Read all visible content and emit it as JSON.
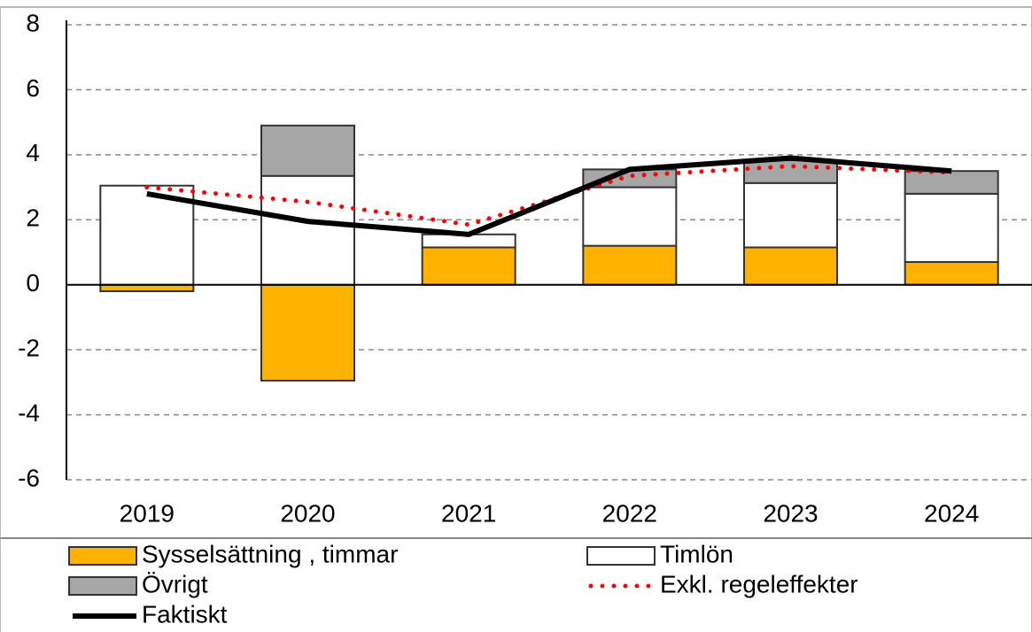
{
  "chart_data": {
    "type": "bar",
    "stacked": true,
    "categories": [
      "2019",
      "2020",
      "2021",
      "2022",
      "2023",
      "2024"
    ],
    "series": [
      {
        "name": "Sysselsättning , timmar",
        "type": "bar",
        "color": "#ffb300",
        "values": [
          -0.2,
          -2.95,
          1.15,
          1.2,
          1.15,
          0.7
        ]
      },
      {
        "name": "Timlön",
        "type": "bar",
        "color": "#ffffff",
        "values": [
          3.05,
          3.35,
          0.4,
          1.8,
          1.98,
          2.1
        ]
      },
      {
        "name": "Övrigt",
        "type": "bar",
        "color": "#a6a6a6",
        "values": [
          0,
          1.55,
          0,
          0.55,
          0.7,
          0.7
        ]
      },
      {
        "name": "Exkl. regeleffekter",
        "type": "line",
        "color": "#ff0000",
        "dash": "dotted",
        "values": [
          3.0,
          2.55,
          1.85,
          3.35,
          3.65,
          3.45
        ]
      },
      {
        "name": "Faktiskt",
        "type": "line",
        "color": "#000000",
        "dash": "solid",
        "values": [
          2.8,
          1.95,
          1.55,
          3.55,
          3.9,
          3.5
        ]
      }
    ],
    "ylim": [
      -6,
      8
    ],
    "yticks": [
      -6,
      -4,
      -2,
      0,
      2,
      4,
      6,
      8
    ],
    "grid": true,
    "legend": "bottom"
  }
}
